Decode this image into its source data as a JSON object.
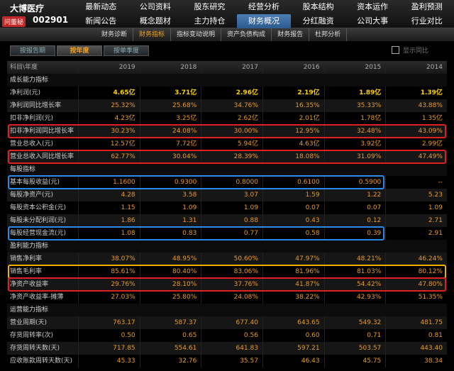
{
  "header": {
    "stock_name": "大博医疗",
    "ask_button": "问董秘",
    "stock_code": "002901"
  },
  "nav": {
    "rows": [
      [
        "最新动态",
        "公司资料",
        "股东研究",
        "经营分析",
        "股本结构",
        "资本运作",
        "盈利预测"
      ],
      [
        "新闻公告",
        "概念题材",
        "主力持仓",
        "财务概况",
        "分红融资",
        "公司大事",
        "行业对比"
      ]
    ]
  },
  "sub_tabs": [
    "财务诊断",
    "财务指标",
    "指标变动说明",
    "资产负债构成",
    "财务报告",
    "杜邦分析"
  ],
  "period_tabs": [
    "按报告期",
    "按年度",
    "按单季度"
  ],
  "checkbox_label": "显示同比",
  "table": {
    "header": [
      "科目\\年度",
      "2019",
      "2018",
      "2017",
      "2016",
      "2015",
      "2014"
    ],
    "sections": [
      {
        "title": "成长能力指标",
        "rows": [
          {
            "label": "净利润(元)",
            "values": [
              "4.65亿",
              "3.71亿",
              "2.96亿",
              "2.19亿",
              "1.89亿",
              "1.39亿"
            ]
          },
          {
            "label": "净利润同比增长率",
            "values": [
              "25.32%",
              "25.68%",
              "34.76%",
              "16.35%",
              "35.33%",
              "43.88%"
            ]
          },
          {
            "label": "扣非净利润(元)",
            "values": [
              "4.23亿",
              "3.25亿",
              "2.62亿",
              "2.01亿",
              "1.78亿",
              "1.35亿"
            ]
          },
          {
            "label": "扣非净利润同比增长率",
            "values": [
              "30.23%",
              "24.08%",
              "30.00%",
              "12.95%",
              "32.48%",
              "43.09%"
            ]
          },
          {
            "label": "营业总收入(元)",
            "values": [
              "12.57亿",
              "7.72亿",
              "5.94亿",
              "4.63亿",
              "3.92亿",
              "2.99亿"
            ]
          },
          {
            "label": "营业总收入同比增长率",
            "values": [
              "62.77%",
              "30.04%",
              "28.39%",
              "18.08%",
              "31.09%",
              "47.49%"
            ]
          }
        ]
      },
      {
        "title": "每股指标",
        "rows": [
          {
            "label": "基本每股收益(元)",
            "values": [
              "1.1600",
              "0.9300",
              "0.8000",
              "0.6100",
              "0.5900",
              "--"
            ]
          },
          {
            "label": "每股净资产(元)",
            "values": [
              "4.28",
              "3.58",
              "3.07",
              "1.59",
              "1.22",
              "5.23"
            ]
          },
          {
            "label": "每股资本公积金(元)",
            "values": [
              "1.15",
              "1.09",
              "1.09",
              "0.07",
              "0.07",
              "1.09"
            ]
          },
          {
            "label": "每股未分配利润(元)",
            "values": [
              "1.86",
              "1.31",
              "0.88",
              "0.43",
              "0.12",
              "2.71"
            ]
          },
          {
            "label": "每股经营现金流(元)",
            "values": [
              "1.08",
              "0.83",
              "0.77",
              "0.58",
              "0.39",
              "2.91"
            ]
          }
        ]
      },
      {
        "title": "盈利能力指标",
        "rows": [
          {
            "label": "销售净利率",
            "values": [
              "38.07%",
              "48.95%",
              "50.60%",
              "47.97%",
              "48.21%",
              "46.24%"
            ]
          },
          {
            "label": "销售毛利率",
            "values": [
              "85.61%",
              "80.40%",
              "83.06%",
              "81.96%",
              "81.03%",
              "80.12%"
            ]
          },
          {
            "label": "净资产收益率",
            "values": [
              "29.76%",
              "28.10%",
              "37.76%",
              "41.87%",
              "54.42%",
              "47.80%"
            ]
          },
          {
            "label": "净资产收益率-摊薄",
            "values": [
              "27.03%",
              "25.80%",
              "24.08%",
              "38.22%",
              "42.93%",
              "51.35%"
            ]
          }
        ]
      },
      {
        "title": "运营能力指标",
        "rows": [
          {
            "label": "营业周期(天)",
            "values": [
              "763.17",
              "587.37",
              "677.40",
              "643.65",
              "549.32",
              "481.75"
            ]
          },
          {
            "label": "存货周转率(次)",
            "values": [
              "0.50",
              "0.65",
              "0.56",
              "0.60",
              "0.71",
              "0.81"
            ]
          },
          {
            "label": "存货周转天数(天)",
            "values": [
              "717.85",
              "554.61",
              "641.83",
              "597.21",
              "503.57",
              "443.40"
            ]
          },
          {
            "label": "应收账款周转天数(天)",
            "values": [
              "45.33",
              "32.76",
              "35.57",
              "46.43",
              "45.75",
              "38.34"
            ]
          }
        ]
      }
    ]
  }
}
